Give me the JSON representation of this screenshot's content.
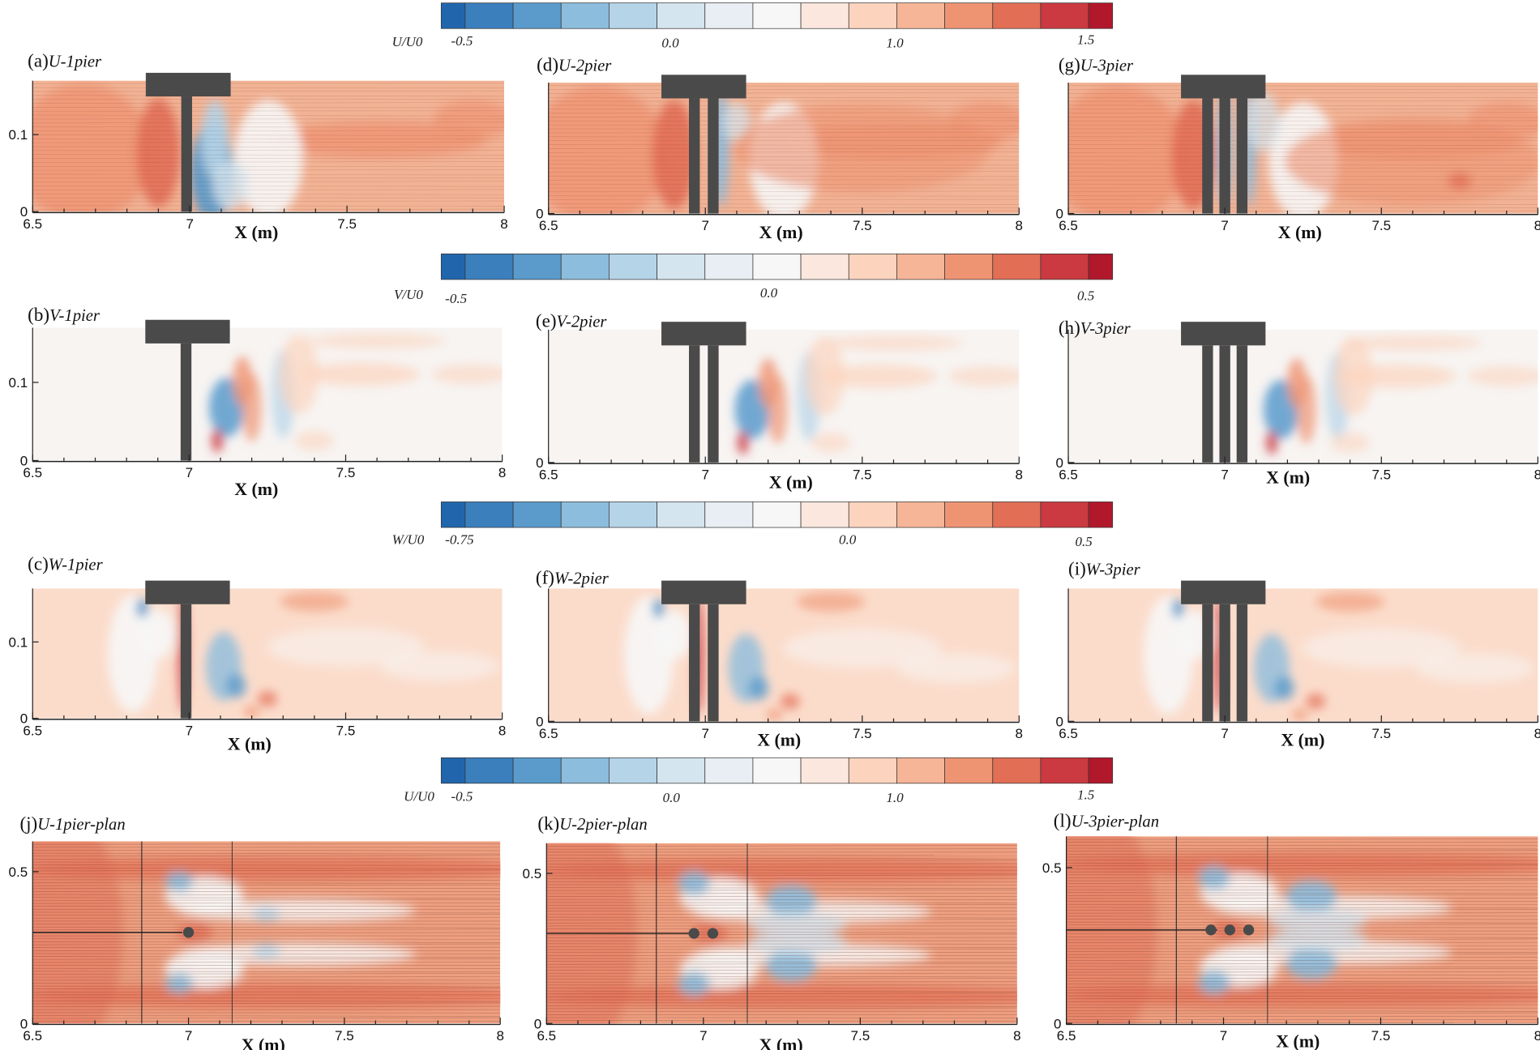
{
  "colorbars": [
    {
      "variable": "U/U0",
      "tick_labels": [
        "-0.5",
        "0.0",
        "1.0",
        "1.5"
      ]
    },
    {
      "variable": "V/U0",
      "tick_labels": [
        "-0.5",
        "0.0",
        "0.5"
      ]
    },
    {
      "variable": "W/U0",
      "tick_labels": [
        "-0.75",
        "0.0",
        "0.5"
      ]
    },
    {
      "variable": "U/U0",
      "tick_labels": [
        "-0.5",
        "0.0",
        "1.0",
        "1.5"
      ]
    }
  ],
  "colormap": [
    "#2166ac",
    "#3b7fbd",
    "#5a9bcc",
    "#8dbddd",
    "#b5d4e8",
    "#d4e5ef",
    "#e8eef3",
    "#f7f7f7",
    "#fbe7dd",
    "#fcd4be",
    "#f7b597",
    "#ef9473",
    "#e26e56",
    "#ca3a40",
    "#b2182b"
  ],
  "pier_color": "#4a4a4a",
  "chart_data": [
    {
      "type": "heatmap",
      "label": "(a)",
      "title": "U-1pier",
      "variable": "U/U0",
      "piers": 1,
      "view": "elevation",
      "xlabel": "X (m)",
      "x_ticks": [
        "6.5",
        "7",
        "7.5",
        "8"
      ],
      "y_ticks": [
        "0",
        "0.1"
      ],
      "xlim": [
        6.5,
        8
      ],
      "colorbar_range": [
        -0.5,
        1.5
      ]
    },
    {
      "type": "heatmap",
      "label": "(d)",
      "title": "U-2pier",
      "variable": "U/U0",
      "piers": 2,
      "view": "elevation",
      "xlabel": "X (m)",
      "x_ticks": [
        "6.5",
        "7",
        "7.5",
        "8"
      ],
      "y_ticks": [
        "0"
      ],
      "xlim": [
        6.5,
        8
      ],
      "colorbar_range": [
        -0.5,
        1.5
      ]
    },
    {
      "type": "heatmap",
      "label": "(g)",
      "title": "U-3pier",
      "variable": "U/U0",
      "piers": 3,
      "view": "elevation",
      "xlabel": "X (m)",
      "x_ticks": [
        "6.5",
        "7",
        "7.5",
        "8"
      ],
      "y_ticks": [
        "0"
      ],
      "xlim": [
        6.5,
        8
      ],
      "colorbar_range": [
        -0.5,
        1.5
      ]
    },
    {
      "type": "heatmap",
      "label": "(b)",
      "title": "V-1pier",
      "variable": "V/U0",
      "piers": 1,
      "view": "elevation",
      "xlabel": "X (m)",
      "x_ticks": [
        "6.5",
        "7",
        "7.5",
        "8"
      ],
      "y_ticks": [
        "0",
        "0.1"
      ],
      "xlim": [
        6.5,
        8
      ],
      "colorbar_range": [
        -0.5,
        0.5
      ]
    },
    {
      "type": "heatmap",
      "label": "(e)",
      "title": "V-2pier",
      "variable": "V/U0",
      "piers": 2,
      "view": "elevation",
      "xlabel": "X (m)",
      "x_ticks": [
        "6.5",
        "7",
        "7.5",
        "8"
      ],
      "y_ticks": [
        "0"
      ],
      "xlim": [
        6.5,
        8
      ],
      "colorbar_range": [
        -0.5,
        0.5
      ]
    },
    {
      "type": "heatmap",
      "label": "(h)",
      "title": "V-3pier",
      "variable": "V/U0",
      "piers": 3,
      "view": "elevation",
      "xlabel": "X (m)",
      "x_ticks": [
        "6.5",
        "7",
        "7.5",
        "8"
      ],
      "y_ticks": [
        "0"
      ],
      "xlim": [
        6.5,
        8
      ],
      "colorbar_range": [
        -0.5,
        0.5
      ]
    },
    {
      "type": "heatmap",
      "label": "(c)",
      "title": "W-1pier",
      "variable": "W/U0",
      "piers": 1,
      "view": "elevation",
      "xlabel": "X (m)",
      "x_ticks": [
        "6.5",
        "7",
        "7.5",
        "8"
      ],
      "y_ticks": [
        "0",
        "0.1"
      ],
      "xlim": [
        6.5,
        8
      ],
      "colorbar_range": [
        -0.75,
        0.5
      ]
    },
    {
      "type": "heatmap",
      "label": "(f)",
      "title": "W-2pier",
      "variable": "W/U0",
      "piers": 2,
      "view": "elevation",
      "xlabel": "X (m)",
      "x_ticks": [
        "6.5",
        "7",
        "7.5",
        "8"
      ],
      "y_ticks": [
        "0"
      ],
      "xlim": [
        6.5,
        8
      ],
      "colorbar_range": [
        -0.75,
        0.5
      ]
    },
    {
      "type": "heatmap",
      "label": "(i)",
      "title": "W-3pier",
      "variable": "W/U0",
      "piers": 3,
      "view": "elevation",
      "xlabel": "X (m)",
      "x_ticks": [
        "6.5",
        "7",
        "7.5",
        "8"
      ],
      "y_ticks": [
        "0"
      ],
      "xlim": [
        6.5,
        8
      ],
      "colorbar_range": [
        -0.75,
        0.5
      ]
    },
    {
      "type": "heatmap",
      "label": "(j)",
      "title": "U-1pier-plan",
      "variable": "U/U0",
      "piers": 1,
      "view": "plan",
      "xlabel": "X (m)",
      "x_ticks": [
        "6.5",
        "7",
        "7.5",
        "8"
      ],
      "y_ticks": [
        "0",
        "0.5"
      ],
      "xlim": [
        6.5,
        8
      ],
      "colorbar_range": [
        -0.5,
        1.5
      ]
    },
    {
      "type": "heatmap",
      "label": "(k)",
      "title": "U-2pier-plan",
      "variable": "U/U0",
      "piers": 2,
      "view": "plan",
      "xlabel": "X (m)",
      "x_ticks": [
        "6.5",
        "7",
        "7.5",
        "8"
      ],
      "y_ticks": [
        "0",
        "0.5"
      ],
      "xlim": [
        6.5,
        8
      ],
      "colorbar_range": [
        -0.5,
        1.5
      ]
    },
    {
      "type": "heatmap",
      "label": "(l)",
      "title": "U-3pier-plan",
      "variable": "U/U0",
      "piers": 3,
      "view": "plan",
      "xlabel": "X (m)",
      "x_ticks": [
        "6.5",
        "7",
        "7.5",
        "8"
      ],
      "y_ticks": [
        "0",
        "0.5"
      ],
      "xlim": [
        6.5,
        8
      ],
      "colorbar_range": [
        -0.5,
        1.5
      ]
    }
  ]
}
